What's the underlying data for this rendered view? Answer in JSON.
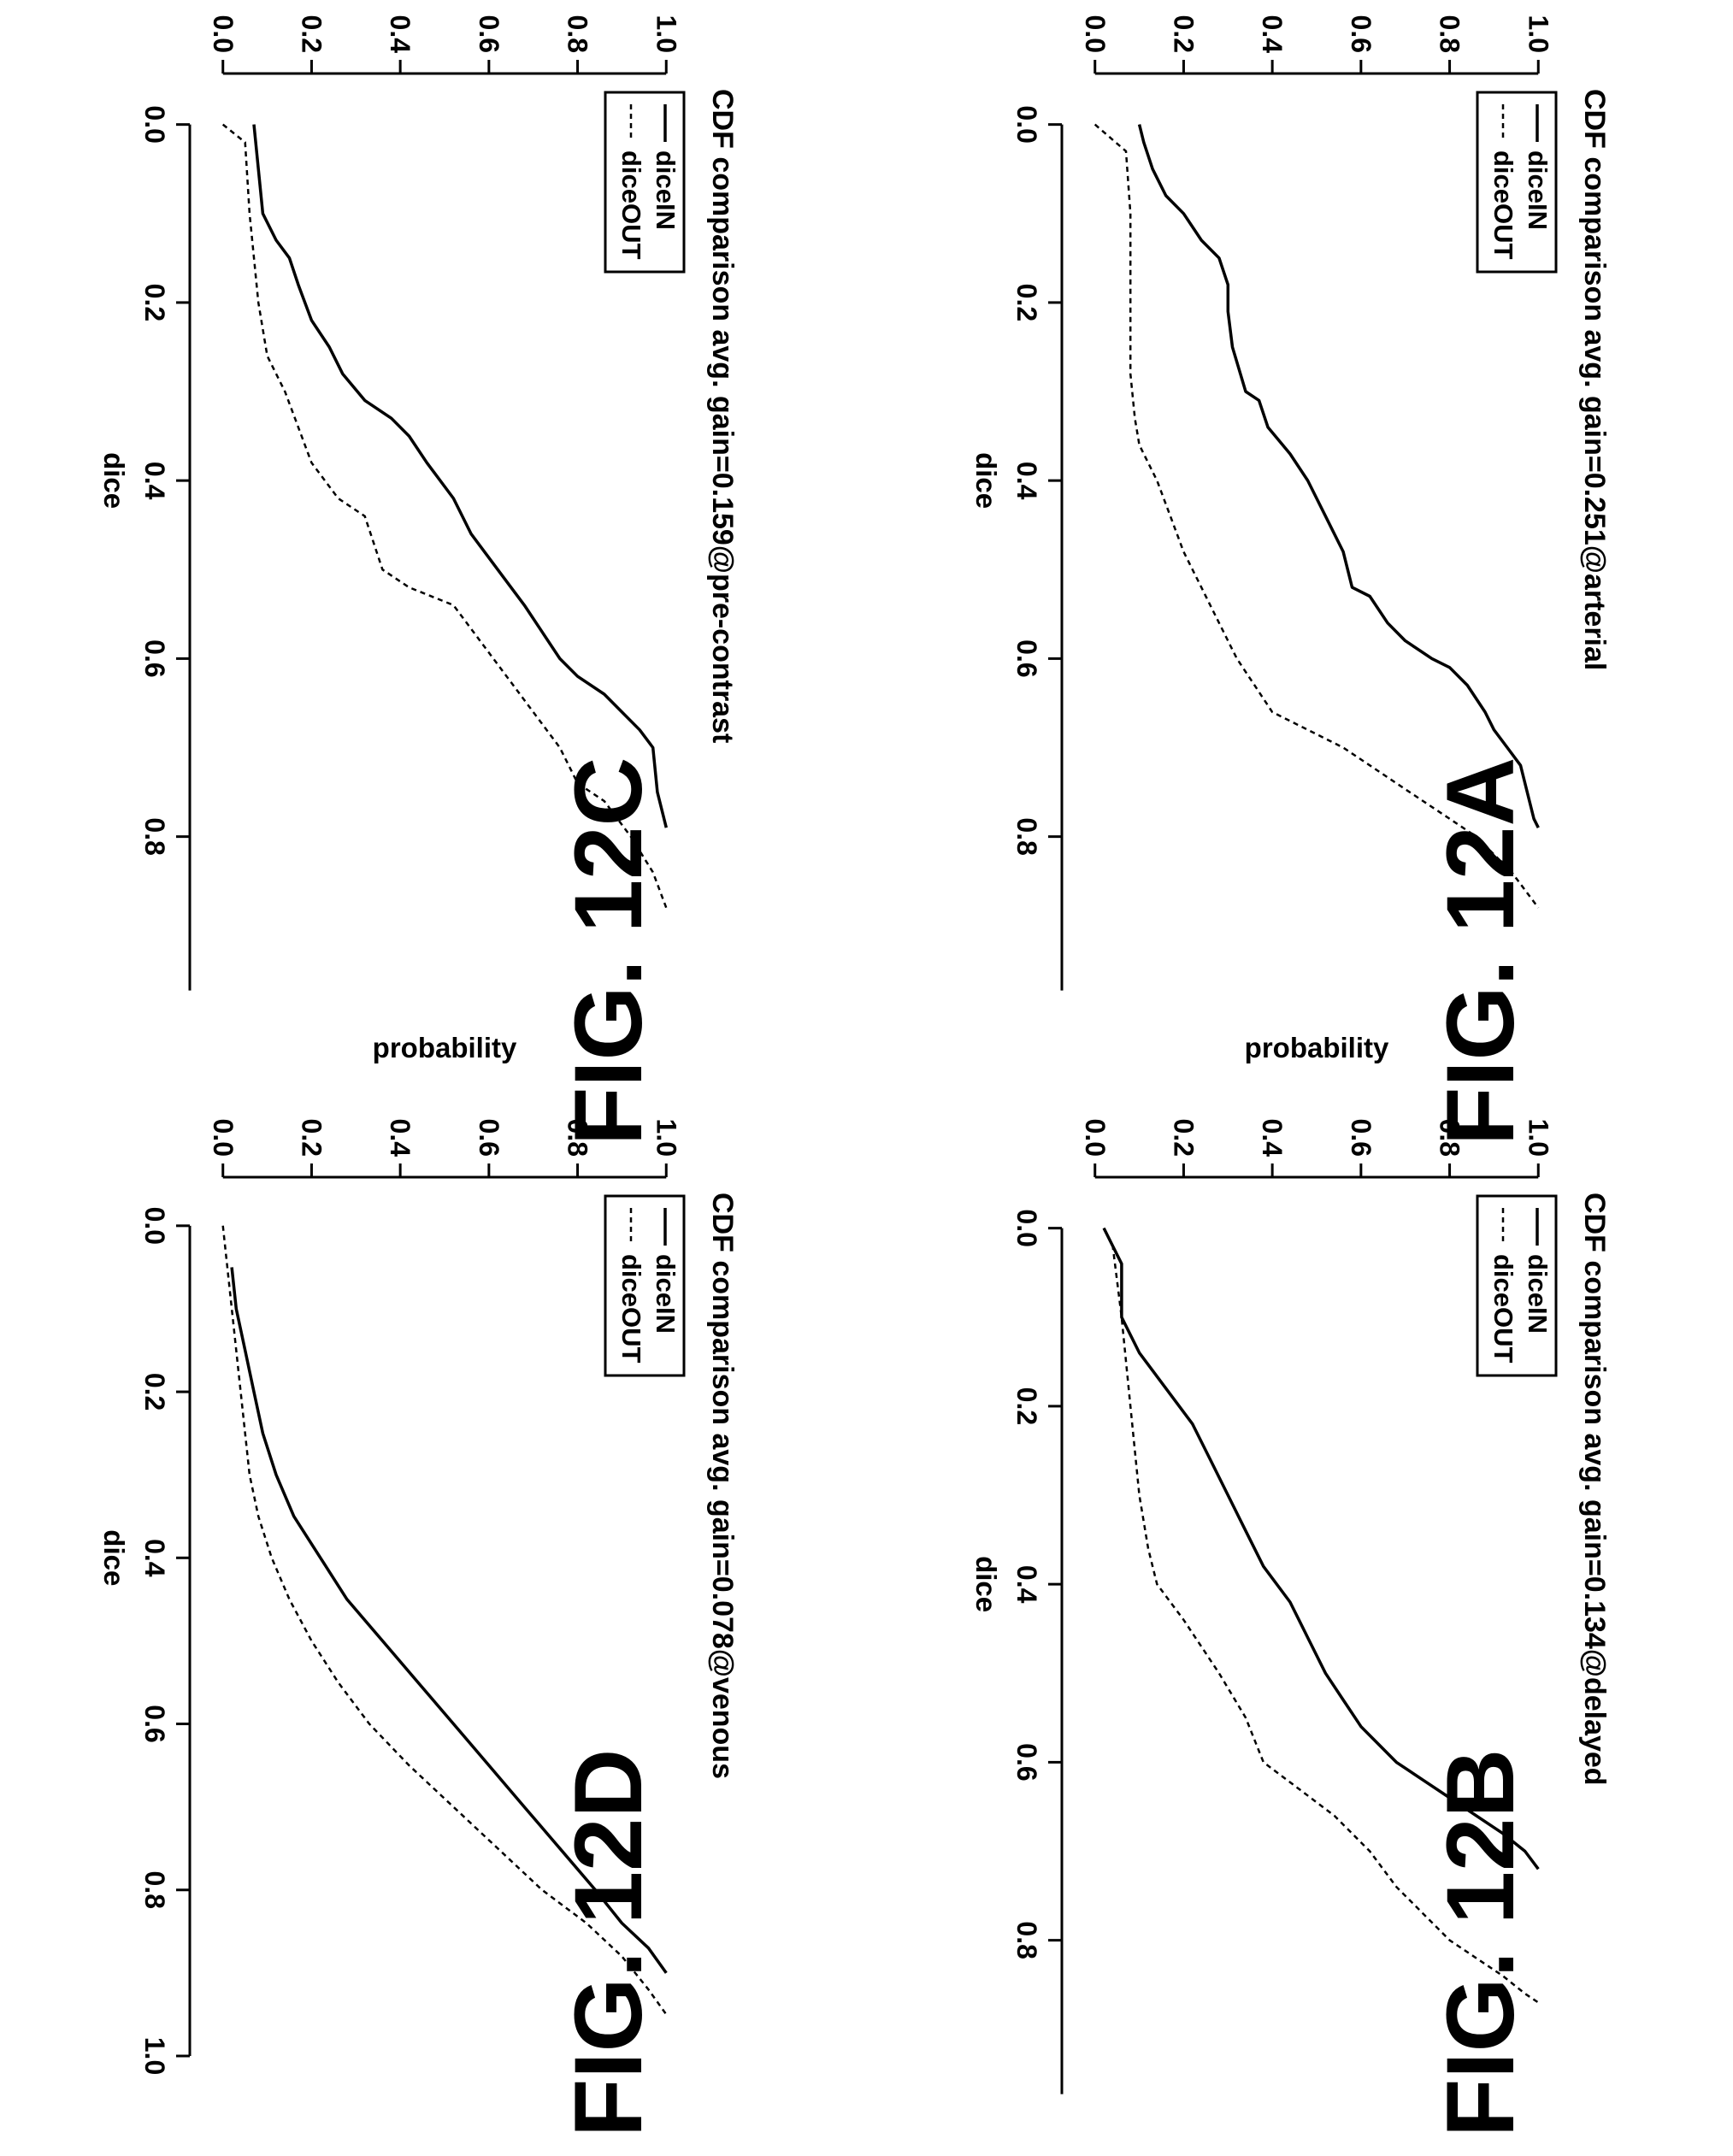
{
  "chart_data": [
    {
      "type": "line",
      "figure_label": "FIG. 12A",
      "title": "CDF comparison avg. gain=0.251@arterial",
      "xlabel": "dice",
      "ylabel": "probability",
      "xlim": [
        -0.04,
        0.93
      ],
      "ylim": [
        -0.04,
        1.04
      ],
      "x_ticks": [
        "0.0",
        "0.2",
        "0.4",
        "0.6",
        "0.8"
      ],
      "y_ticks": [
        "0.0",
        "0.2",
        "0.4",
        "0.6",
        "0.8",
        "1.0"
      ],
      "legend_placement": "top-left",
      "series": [
        {
          "name": "diceIN",
          "line_style": "solid",
          "x": [
            0.0,
            0.02,
            0.05,
            0.08,
            0.1,
            0.13,
            0.15,
            0.18,
            0.21,
            0.25,
            0.3,
            0.31,
            0.34,
            0.37,
            0.4,
            0.44,
            0.48,
            0.52,
            0.53,
            0.56,
            0.58,
            0.6,
            0.61,
            0.63,
            0.66,
            0.68,
            0.7,
            0.72,
            0.74,
            0.76,
            0.78,
            0.79
          ],
          "y": [
            0.1,
            0.11,
            0.13,
            0.16,
            0.2,
            0.24,
            0.28,
            0.3,
            0.3,
            0.31,
            0.34,
            0.37,
            0.39,
            0.44,
            0.48,
            0.52,
            0.56,
            0.58,
            0.62,
            0.66,
            0.7,
            0.76,
            0.8,
            0.84,
            0.88,
            0.9,
            0.93,
            0.96,
            0.97,
            0.98,
            0.99,
            1.0
          ]
        },
        {
          "name": "diceOUT",
          "line_style": "dashed",
          "x": [
            0.0,
            0.03,
            0.1,
            0.2,
            0.28,
            0.33,
            0.36,
            0.4,
            0.44,
            0.48,
            0.52,
            0.56,
            0.6,
            0.63,
            0.66,
            0.68,
            0.7,
            0.72,
            0.74,
            0.76,
            0.78,
            0.8,
            0.82,
            0.84,
            0.86,
            0.88
          ],
          "y": [
            0.0,
            0.07,
            0.08,
            0.08,
            0.08,
            0.09,
            0.1,
            0.14,
            0.17,
            0.2,
            0.24,
            0.28,
            0.32,
            0.36,
            0.4,
            0.48,
            0.56,
            0.62,
            0.68,
            0.74,
            0.8,
            0.86,
            0.9,
            0.94,
            0.97,
            1.0
          ]
        }
      ]
    },
    {
      "type": "line",
      "figure_label": "FIG. 12B",
      "title": "CDF comparison avg. gain=0.134@delayed",
      "xlabel": "dice",
      "ylabel": "probability",
      "xlim": [
        -0.04,
        0.93
      ],
      "ylim": [
        -0.04,
        1.04
      ],
      "x_ticks": [
        "0.0",
        "0.2",
        "0.4",
        "0.6",
        "0.8"
      ],
      "y_ticks": [
        "0.0",
        "0.2",
        "0.4",
        "0.6",
        "0.8",
        "1.0"
      ],
      "legend_placement": "top-left",
      "series": [
        {
          "name": "diceIN",
          "line_style": "solid",
          "x": [
            0.0,
            0.02,
            0.04,
            0.08,
            0.1,
            0.14,
            0.18,
            0.22,
            0.26,
            0.3,
            0.34,
            0.38,
            0.42,
            0.46,
            0.5,
            0.53,
            0.56,
            0.6,
            0.62,
            0.64,
            0.66,
            0.68,
            0.7,
            0.72
          ],
          "y": [
            0.02,
            0.04,
            0.06,
            0.06,
            0.06,
            0.1,
            0.16,
            0.22,
            0.26,
            0.3,
            0.34,
            0.38,
            0.44,
            0.48,
            0.52,
            0.56,
            0.6,
            0.68,
            0.74,
            0.8,
            0.86,
            0.92,
            0.97,
            1.0
          ]
        },
        {
          "name": "diceOUT",
          "line_style": "dashed",
          "x": [
            0.0,
            0.02,
            0.1,
            0.2,
            0.3,
            0.36,
            0.4,
            0.44,
            0.5,
            0.55,
            0.6,
            0.63,
            0.66,
            0.7,
            0.74,
            0.76,
            0.78,
            0.8,
            0.82,
            0.84,
            0.86,
            0.87
          ],
          "y": [
            0.02,
            0.04,
            0.06,
            0.08,
            0.1,
            0.12,
            0.14,
            0.2,
            0.28,
            0.34,
            0.38,
            0.46,
            0.54,
            0.62,
            0.68,
            0.72,
            0.76,
            0.8,
            0.86,
            0.92,
            0.97,
            1.0
          ]
        }
      ]
    },
    {
      "type": "line",
      "figure_label": "FIG. 12C",
      "title": "CDF comparison avg. gain=0.159@pre-contrast",
      "xlabel": "dice",
      "ylabel": "probability",
      "xlim": [
        -0.04,
        0.93
      ],
      "ylim": [
        -0.04,
        1.04
      ],
      "x_ticks": [
        "0.0",
        "0.2",
        "0.4",
        "0.6",
        "0.8"
      ],
      "y_ticks": [
        "0.0",
        "0.2",
        "0.4",
        "0.6",
        "0.8",
        "1.0"
      ],
      "legend_placement": "top-left",
      "series": [
        {
          "name": "diceIN",
          "line_style": "solid",
          "x": [
            0.0,
            0.05,
            0.1,
            0.13,
            0.15,
            0.18,
            0.22,
            0.25,
            0.28,
            0.31,
            0.33,
            0.35,
            0.38,
            0.42,
            0.46,
            0.5,
            0.54,
            0.57,
            0.6,
            0.62,
            0.64,
            0.66,
            0.68,
            0.7,
            0.75,
            0.79
          ],
          "y": [
            0.07,
            0.08,
            0.09,
            0.12,
            0.15,
            0.17,
            0.2,
            0.24,
            0.27,
            0.32,
            0.38,
            0.42,
            0.46,
            0.52,
            0.56,
            0.62,
            0.68,
            0.72,
            0.76,
            0.8,
            0.86,
            0.9,
            0.94,
            0.97,
            0.98,
            1.0
          ]
        },
        {
          "name": "diceOUT",
          "line_style": "dashed",
          "x": [
            0.0,
            0.02,
            0.1,
            0.2,
            0.26,
            0.3,
            0.38,
            0.42,
            0.44,
            0.5,
            0.52,
            0.54,
            0.58,
            0.62,
            0.66,
            0.7,
            0.74,
            0.76,
            0.8,
            0.84,
            0.88
          ],
          "y": [
            0.0,
            0.05,
            0.06,
            0.08,
            0.1,
            0.14,
            0.2,
            0.26,
            0.32,
            0.36,
            0.42,
            0.52,
            0.58,
            0.64,
            0.7,
            0.76,
            0.8,
            0.86,
            0.92,
            0.97,
            1.0
          ]
        }
      ]
    },
    {
      "type": "line",
      "figure_label": "FIG. 12D",
      "title": "CDF comparison avg. gain=0.078@venous",
      "xlabel": "dice",
      "ylabel": "probability",
      "xlim": [
        -0.04,
        1.0
      ],
      "ylim": [
        -0.04,
        1.04
      ],
      "x_ticks": [
        "0.0",
        "0.2",
        "0.4",
        "0.6",
        "0.8",
        "1.0"
      ],
      "y_ticks": [
        "0.0",
        "0.2",
        "0.4",
        "0.6",
        "0.8",
        "1.0"
      ],
      "legend_placement": "top-left",
      "series": [
        {
          "name": "diceIN",
          "line_style": "solid",
          "x": [
            0.05,
            0.1,
            0.15,
            0.2,
            0.25,
            0.3,
            0.35,
            0.4,
            0.45,
            0.5,
            0.55,
            0.6,
            0.65,
            0.7,
            0.75,
            0.8,
            0.84,
            0.87,
            0.9
          ],
          "y": [
            0.02,
            0.03,
            0.05,
            0.07,
            0.09,
            0.12,
            0.16,
            0.22,
            0.28,
            0.36,
            0.44,
            0.52,
            0.6,
            0.68,
            0.76,
            0.84,
            0.9,
            0.96,
            1.0
          ]
        },
        {
          "name": "diceOUT",
          "line_style": "dashed",
          "x": [
            0.0,
            0.05,
            0.1,
            0.15,
            0.2,
            0.25,
            0.3,
            0.35,
            0.4,
            0.45,
            0.5,
            0.55,
            0.6,
            0.65,
            0.7,
            0.75,
            0.8,
            0.84,
            0.88,
            0.92,
            0.95
          ],
          "y": [
            0.0,
            0.01,
            0.02,
            0.03,
            0.04,
            0.05,
            0.06,
            0.08,
            0.11,
            0.15,
            0.2,
            0.26,
            0.33,
            0.42,
            0.52,
            0.62,
            0.72,
            0.82,
            0.9,
            0.96,
            1.0
          ]
        }
      ]
    }
  ]
}
